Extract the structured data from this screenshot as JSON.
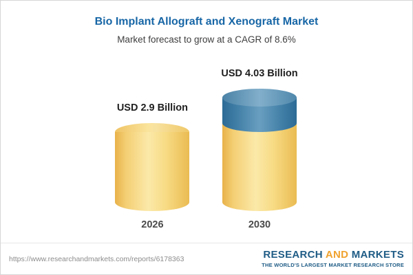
{
  "chart_data": {
    "type": "bar",
    "bar_style": "cylinder",
    "title": "Bio Implant Allograft and Xenograft Market",
    "subtitle": "Market forecast to grow at a CAGR of 8.6%",
    "cagr": "8.6%",
    "categories": [
      "2026",
      "2030"
    ],
    "values": [
      2.9,
      4.03
    ],
    "unit": "USD Billion",
    "value_labels": [
      "USD 2.9 Billion",
      "USD 4.03 Billion"
    ],
    "legend": "none",
    "axes": "none",
    "colors": {
      "title": "#1766A6",
      "base_segment": "#F5CE6E",
      "growth_segment": "#41799F"
    }
  },
  "footer": {
    "url": "https://www.researchandmarkets.com/reports/6178363",
    "logo": {
      "research": "RESEARCH",
      "and": "AND",
      "markets": "MARKETS",
      "tagline": "THE WORLD'S LARGEST MARKET RESEARCH STORE"
    }
  }
}
